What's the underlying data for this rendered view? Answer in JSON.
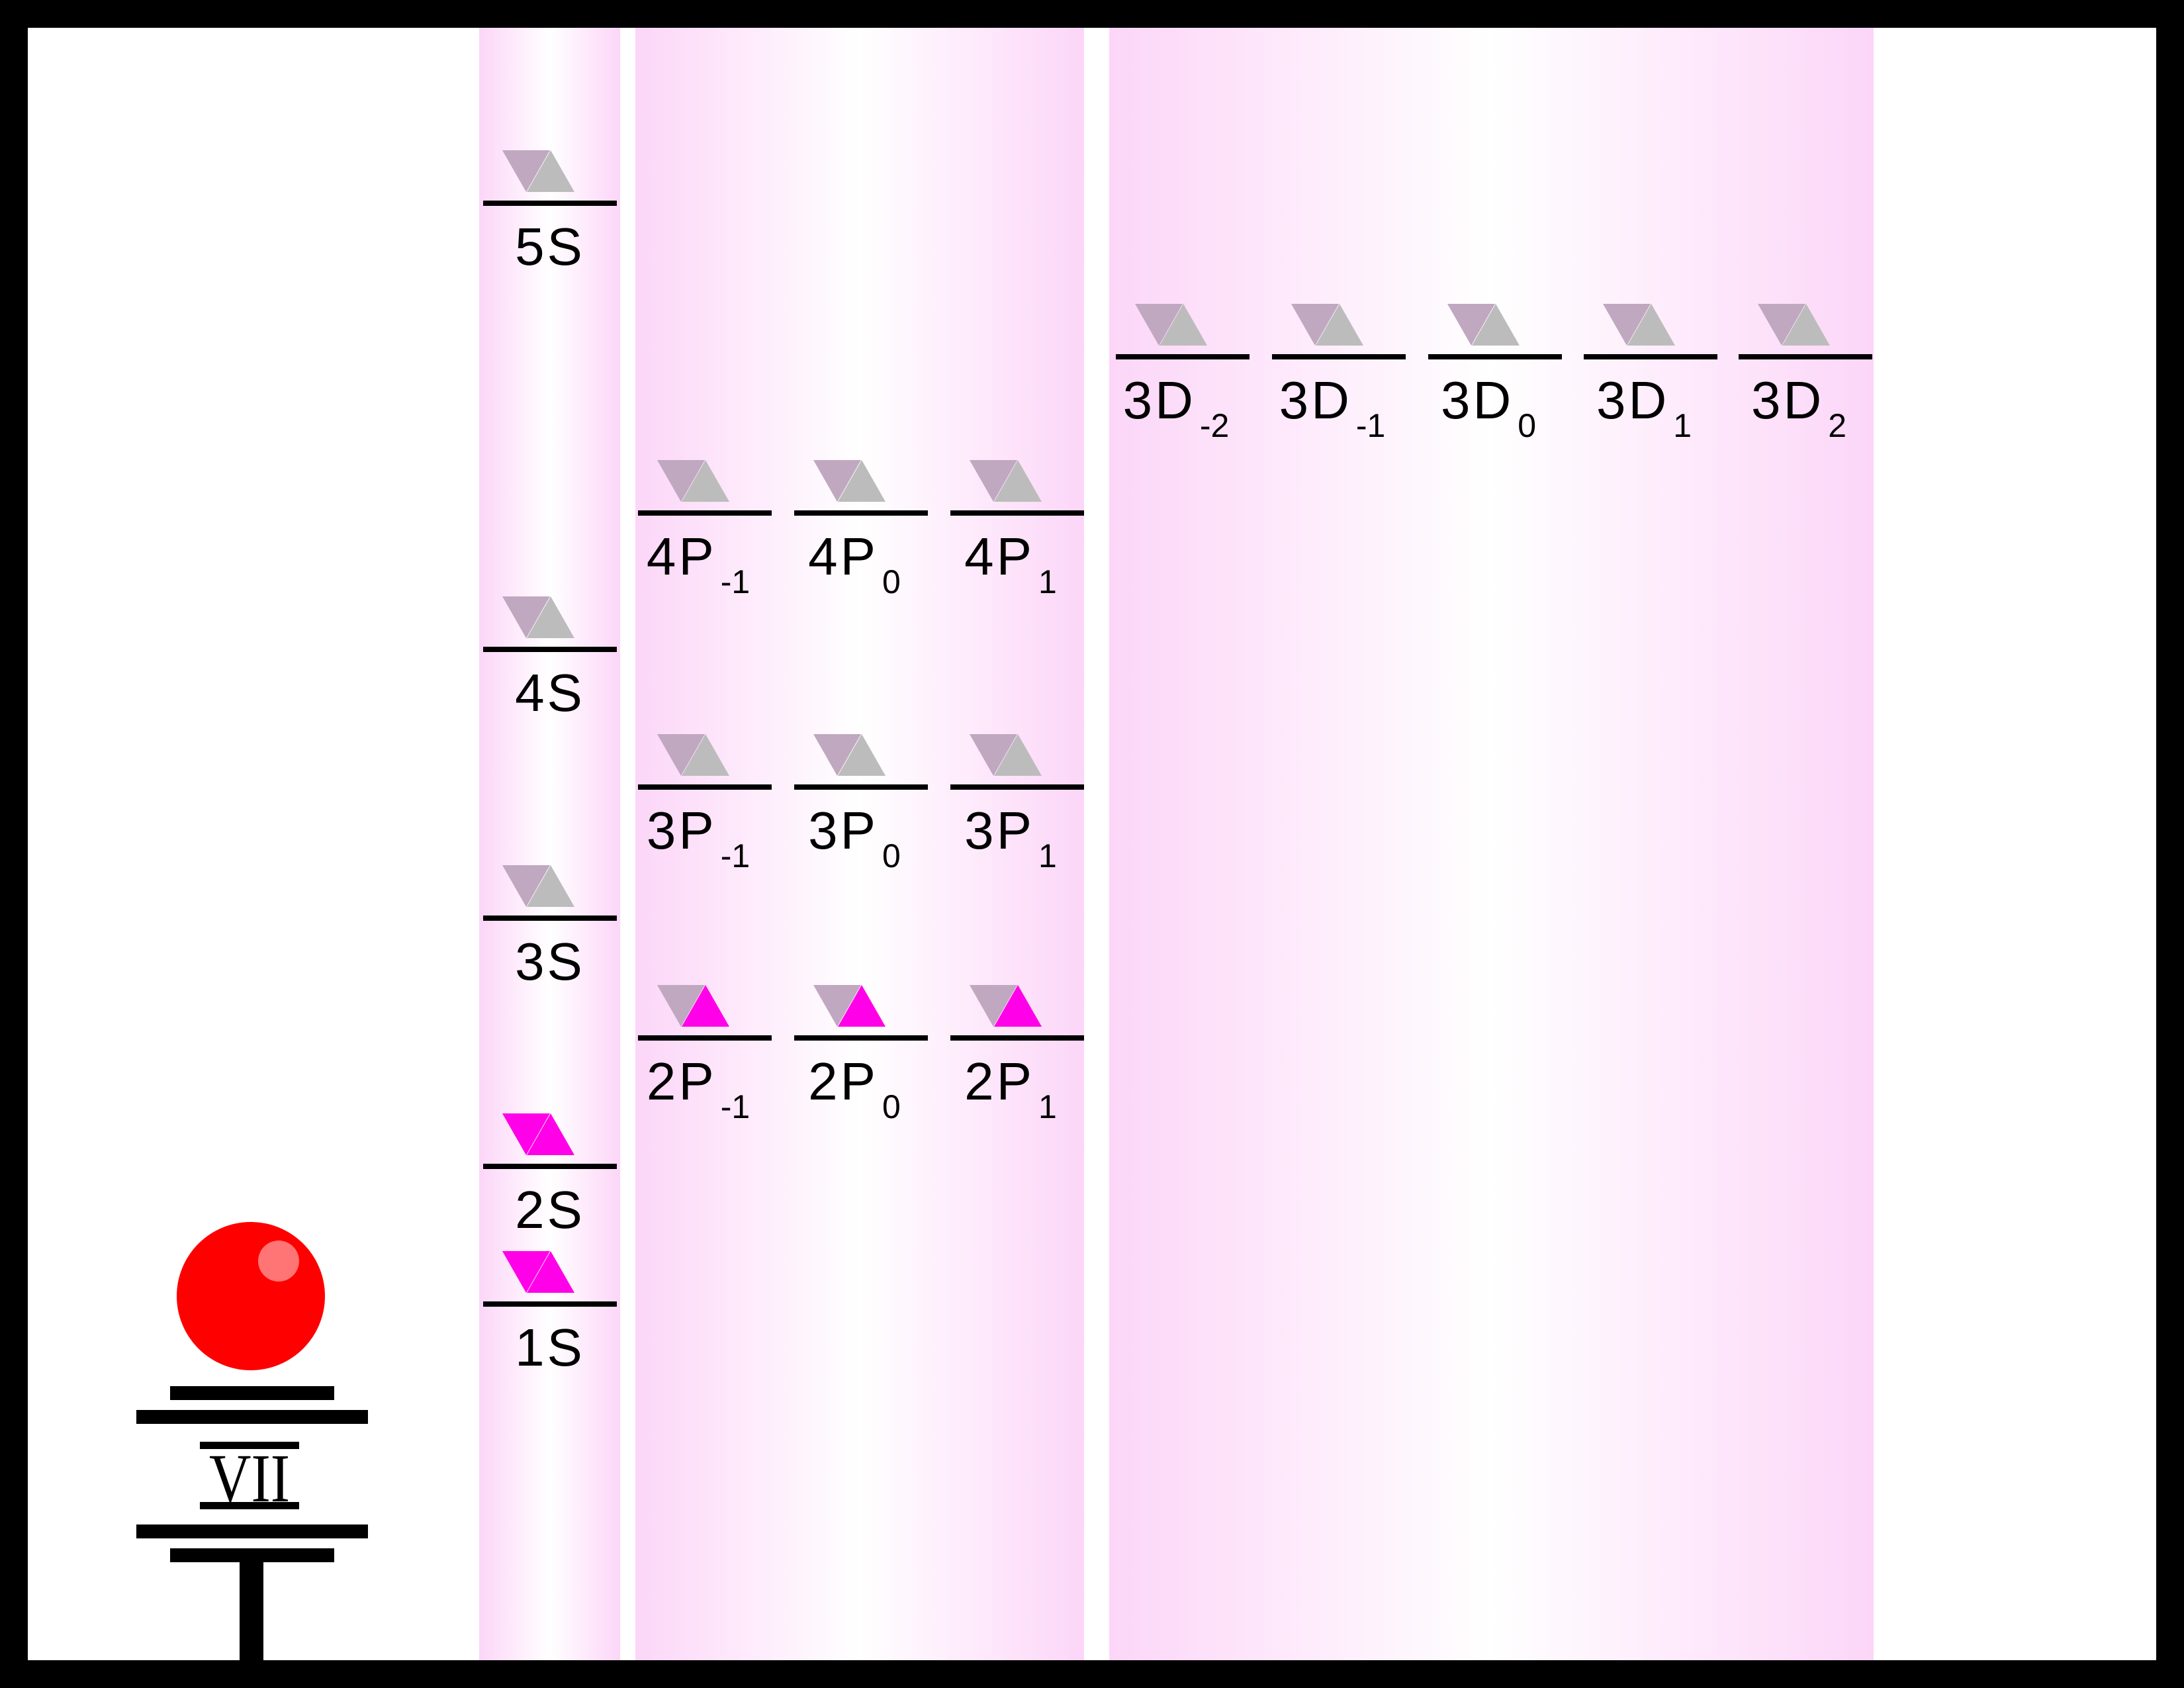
{
  "element": {
    "group_numeral": "VII",
    "nucleus_color": "#ff0000",
    "highlight_color": "#ff7474"
  },
  "colors": {
    "filled": "#ff00e8",
    "empty_down": "#c0a8c0",
    "empty_up": "#bcbcbc",
    "band_edge": "#fcd6f8",
    "band_center": "#ffffff"
  },
  "orbitals": {
    "s": [
      {
        "main": "5S",
        "sub": "",
        "spins": [
          "empty",
          "empty"
        ]
      },
      {
        "main": "4S",
        "sub": "",
        "spins": [
          "empty",
          "empty"
        ]
      },
      {
        "main": "3S",
        "sub": "",
        "spins": [
          "empty",
          "empty"
        ]
      },
      {
        "main": "2S",
        "sub": "",
        "spins": [
          "filled",
          "filled"
        ]
      },
      {
        "main": "1S",
        "sub": "",
        "spins": [
          "filled",
          "filled"
        ]
      }
    ],
    "p": [
      {
        "main": "4P",
        "sub": "-1",
        "spins": [
          "empty",
          "empty"
        ]
      },
      {
        "main": "4P",
        "sub": "0",
        "spins": [
          "empty",
          "empty"
        ]
      },
      {
        "main": "4P",
        "sub": "1",
        "spins": [
          "empty",
          "empty"
        ]
      },
      {
        "main": "3P",
        "sub": "-1",
        "spins": [
          "empty",
          "empty"
        ]
      },
      {
        "main": "3P",
        "sub": "0",
        "spins": [
          "empty",
          "empty"
        ]
      },
      {
        "main": "3P",
        "sub": "1",
        "spins": [
          "empty",
          "empty"
        ]
      },
      {
        "main": "2P",
        "sub": "-1",
        "spins": [
          "empty",
          "filled"
        ]
      },
      {
        "main": "2P",
        "sub": "0",
        "spins": [
          "empty",
          "filled"
        ]
      },
      {
        "main": "2P",
        "sub": "1",
        "spins": [
          "empty",
          "filled"
        ]
      }
    ],
    "d": [
      {
        "main": "3D",
        "sub": "-2",
        "spins": [
          "empty",
          "empty"
        ]
      },
      {
        "main": "3D",
        "sub": "-1",
        "spins": [
          "empty",
          "empty"
        ]
      },
      {
        "main": "3D",
        "sub": "0",
        "spins": [
          "empty",
          "empty"
        ]
      },
      {
        "main": "3D",
        "sub": "1",
        "spins": [
          "empty",
          "empty"
        ]
      },
      {
        "main": "3D",
        "sub": "2",
        "spins": [
          "empty",
          "empty"
        ]
      }
    ]
  }
}
